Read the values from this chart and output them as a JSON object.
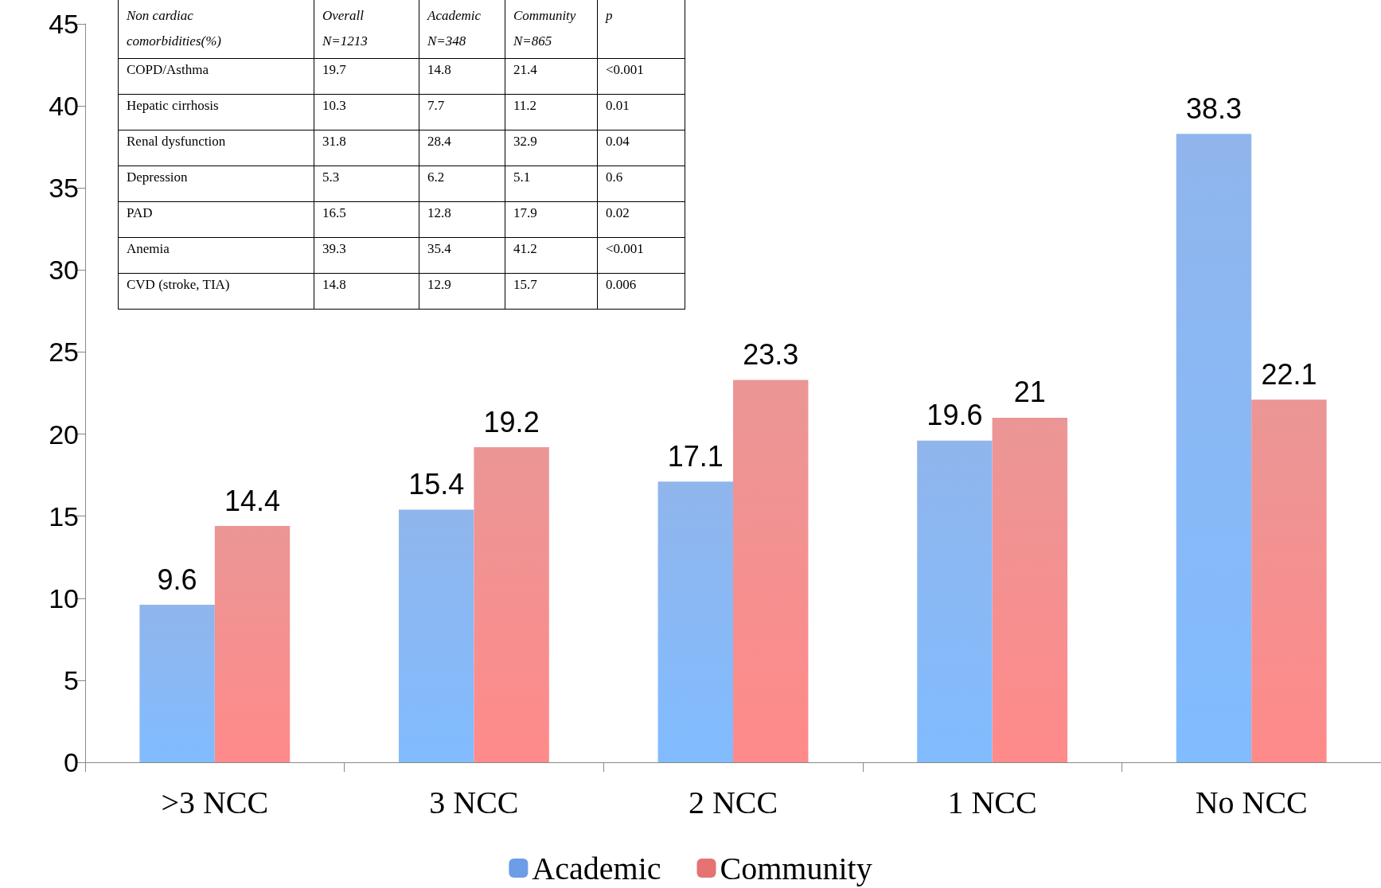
{
  "chart_data": {
    "type": "bar",
    "categories": [
      ">3 NCC",
      "3 NCC",
      "2 NCC",
      "1 NCC",
      "No NCC"
    ],
    "series": [
      {
        "name": "Academic",
        "color": "#6c9de6",
        "values": [
          9.6,
          15.4,
          17.1,
          19.6,
          38.3
        ]
      },
      {
        "name": "Community",
        "color": "#e57373",
        "values": [
          14.4,
          19.2,
          23.3,
          21,
          22.1
        ]
      }
    ],
    "ylim": [
      0,
      45
    ],
    "yticks": [
      0,
      5,
      10,
      15,
      20,
      25,
      30,
      35,
      40,
      45
    ],
    "grid": false,
    "legend": "bottom",
    "data_labels": true,
    "annotations": [
      "Non cardiac\ncomorbidities(%)",
      "Overall\nN=1213",
      "Academic\nN=348",
      "Community\nN=865",
      "p",
      "COPD/Asthma",
      "19.7",
      "14.8",
      "21.4",
      "<0.001",
      "Hepatic cirrhosis",
      "10.3",
      "7.7",
      "11.2",
      "0.01",
      "Renal dysfunction",
      "31.8",
      "28.4",
      "32.9",
      "0.04",
      "Depression",
      "5.3",
      "6.2",
      "5.1",
      "0.6",
      "PAD",
      "16.5",
      "12.8",
      "17.9",
      "0.02",
      "Anemia",
      "39.3",
      "35.4",
      "41.2",
      "<0.001",
      "CVD (stroke, TIA)",
      "14.8",
      "12.9",
      "15.7",
      "0.006"
    ]
  }
}
